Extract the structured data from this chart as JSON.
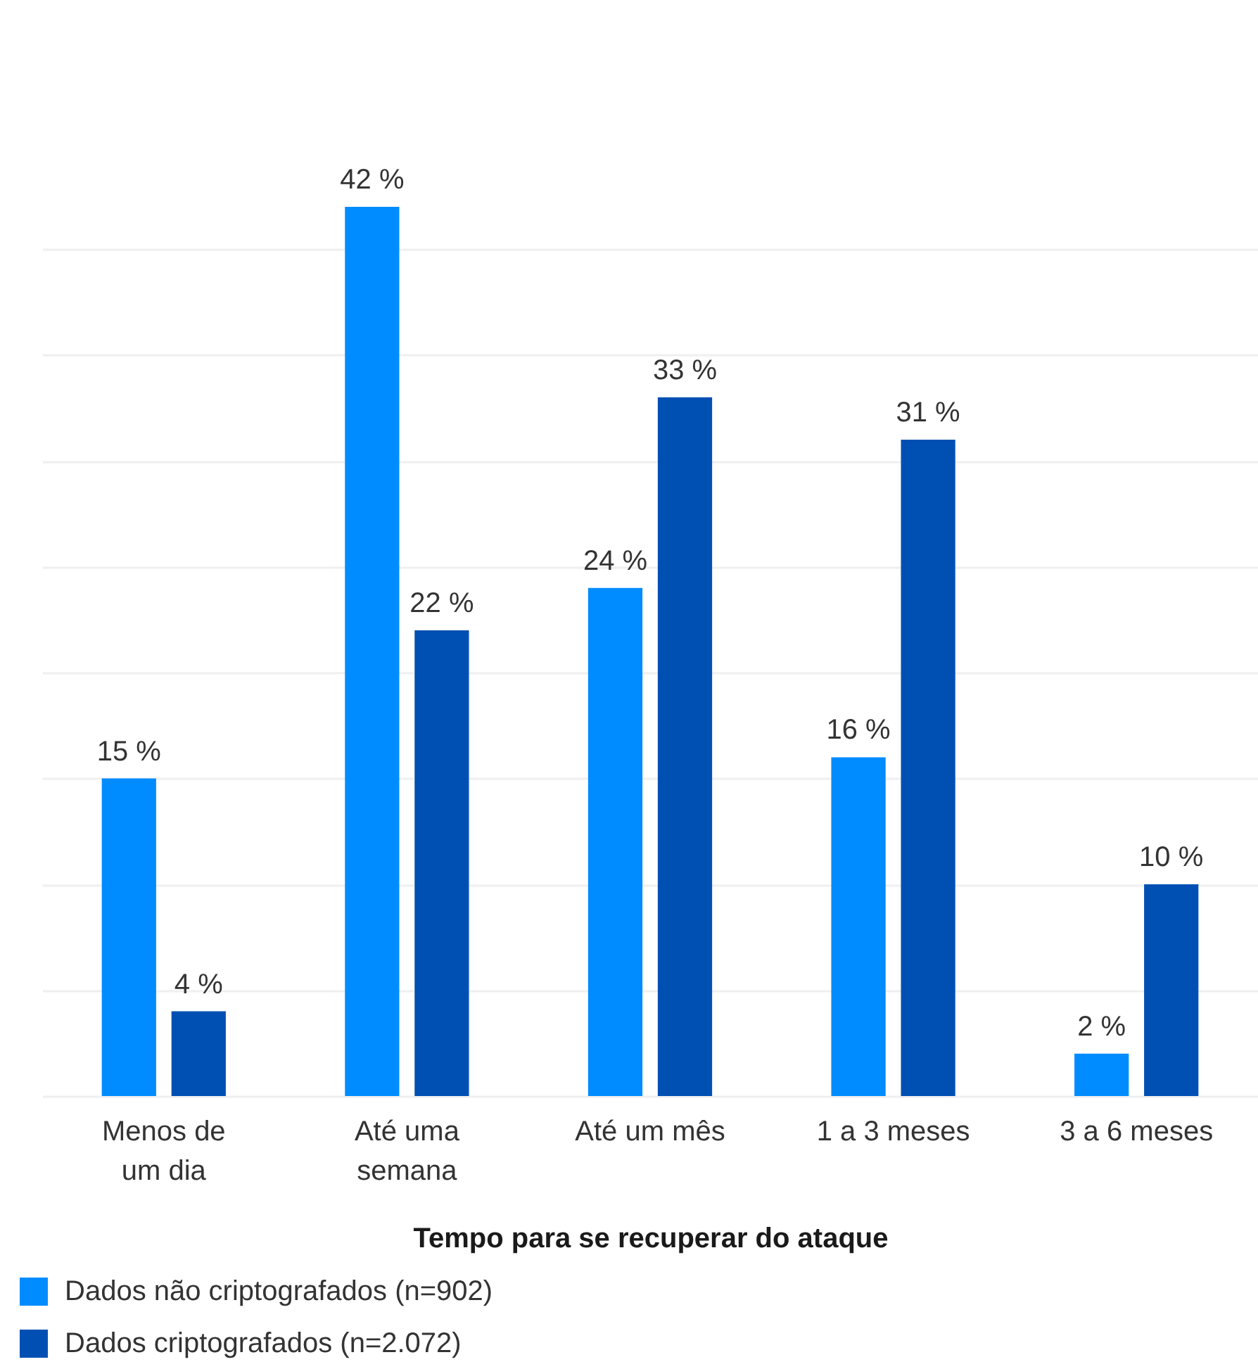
{
  "chart_data": {
    "type": "bar",
    "xlabel": "Tempo para se recuperar do ataque",
    "categories": [
      "Menos de um dia",
      "Até uma semana",
      "Até um mês",
      "1 a 3 meses",
      "3 a 6 meses"
    ],
    "series": [
      {
        "name": "Dados não criptografados (n=902)",
        "color": "#008cff",
        "values": [
          15,
          42,
          24,
          16,
          2
        ],
        "value_labels": [
          "15 %",
          "42 %",
          "24 %",
          "16 %",
          "2 %"
        ]
      },
      {
        "name": "Dados criptografados (n=2.072)",
        "color": "#0050b4",
        "values": [
          4,
          22,
          33,
          31,
          10
        ],
        "value_labels": [
          "4 %",
          "22 %",
          "33 %",
          "31 %",
          "10 %"
        ]
      }
    ],
    "yticks": [
      {
        "value": 0,
        "label": null
      },
      {
        "value": 5,
        "label": null
      },
      {
        "value": 10,
        "label": null
      },
      {
        "value": 15,
        "label": null
      },
      {
        "value": 20,
        "label": null
      },
      {
        "value": 25,
        "label": null
      },
      {
        "value": 30,
        "label": null
      },
      {
        "value": 35,
        "label": null
      },
      {
        "value": 40,
        "label": null
      }
    ],
    "grid": "y",
    "legend": "bottom left",
    "tick_labels": "x"
  }
}
